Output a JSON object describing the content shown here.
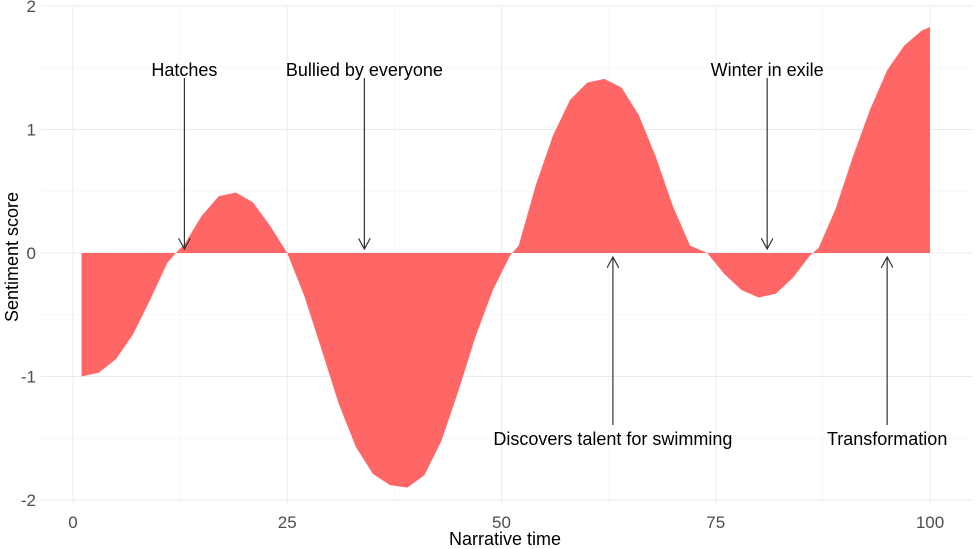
{
  "chart_data": {
    "type": "area",
    "xlabel": "Narrative time",
    "ylabel": "Sentiment score",
    "xlim": [
      0,
      100
    ],
    "ylim": [
      -2,
      2
    ],
    "x_ticks": [
      "0",
      "25",
      "50",
      "75",
      "100"
    ],
    "y_ticks": [
      "-2",
      "-1",
      "0",
      "1",
      "2"
    ],
    "grid": true,
    "fill_color": "#ff6666",
    "points": [
      [
        1,
        -1.0
      ],
      [
        3,
        -0.97
      ],
      [
        5,
        -0.86
      ],
      [
        7,
        -0.66
      ],
      [
        9,
        -0.38
      ],
      [
        11,
        -0.08
      ],
      [
        12,
        0.0
      ],
      [
        13,
        0.07
      ],
      [
        15,
        0.3
      ],
      [
        17,
        0.46
      ],
      [
        19,
        0.49
      ],
      [
        21,
        0.41
      ],
      [
        23,
        0.22
      ],
      [
        25,
        0.0
      ],
      [
        27,
        -0.35
      ],
      [
        29,
        -0.78
      ],
      [
        31,
        -1.22
      ],
      [
        33,
        -1.57
      ],
      [
        35,
        -1.79
      ],
      [
        37,
        -1.88
      ],
      [
        39,
        -1.9
      ],
      [
        41,
        -1.8
      ],
      [
        43,
        -1.52
      ],
      [
        45,
        -1.11
      ],
      [
        47,
        -0.67
      ],
      [
        49,
        -0.3
      ],
      [
        51,
        -0.02
      ],
      [
        52,
        0.06
      ],
      [
        54,
        0.55
      ],
      [
        56,
        0.95
      ],
      [
        58,
        1.24
      ],
      [
        60,
        1.38
      ],
      [
        62,
        1.41
      ],
      [
        64,
        1.34
      ],
      [
        66,
        1.12
      ],
      [
        68,
        0.78
      ],
      [
        70,
        0.38
      ],
      [
        72,
        0.06
      ],
      [
        74,
        0.0
      ],
      [
        76,
        -0.17
      ],
      [
        78,
        -0.3
      ],
      [
        80,
        -0.36
      ],
      [
        82,
        -0.33
      ],
      [
        84,
        -0.2
      ],
      [
        86,
        -0.02
      ],
      [
        87,
        0.04
      ],
      [
        89,
        0.36
      ],
      [
        91,
        0.78
      ],
      [
        93,
        1.16
      ],
      [
        95,
        1.48
      ],
      [
        97,
        1.68
      ],
      [
        99,
        1.8
      ],
      [
        100,
        1.83
      ]
    ],
    "annotations": [
      {
        "label": "Hatches",
        "x": 13,
        "side": "above"
      },
      {
        "label": "Bullied by everyone",
        "x": 34,
        "side": "above"
      },
      {
        "label": "Discovers talent for swimming",
        "x": 63,
        "side": "below"
      },
      {
        "label": "Winter in exile",
        "x": 81,
        "side": "above"
      },
      {
        "label": "Transformation",
        "x": 95,
        "side": "below"
      }
    ]
  }
}
